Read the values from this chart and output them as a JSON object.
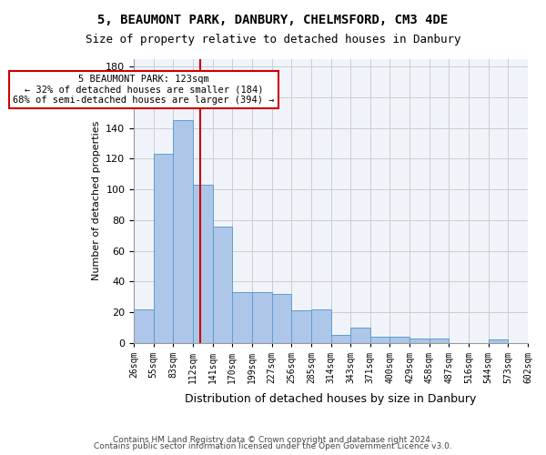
{
  "title1": "5, BEAUMONT PARK, DANBURY, CHELMSFORD, CM3 4DE",
  "title2": "Size of property relative to detached houses in Danbury",
  "xlabel": "Distribution of detached houses by size in Danbury",
  "ylabel": "Number of detached properties",
  "bin_labels": [
    "26sqm",
    "55sqm",
    "83sqm",
    "112sqm",
    "141sqm",
    "170sqm",
    "199sqm",
    "227sqm",
    "256sqm",
    "285sqm",
    "314sqm",
    "343sqm",
    "371sqm",
    "400sqm",
    "429sqm",
    "458sqm",
    "487sqm",
    "516sqm",
    "544sqm",
    "573sqm",
    "602sqm"
  ],
  "bar_heights": [
    22,
    123,
    145,
    103,
    76,
    33,
    33,
    32,
    21,
    22,
    5,
    10,
    4,
    4,
    3,
    3,
    0,
    0,
    2,
    0
  ],
  "bar_color": "#aec6e8",
  "bar_edge_color": "#5a9fd4",
  "property_value": 123,
  "property_line_x": 3,
  "annotation_text": "5 BEAUMONT PARK: 123sqm\n← 32% of detached houses are smaller (184)\n68% of semi-detached houses are larger (394) →",
  "annotation_box_color": "#ffffff",
  "annotation_border_color": "#cc0000",
  "vline_color": "#cc0000",
  "ylim": [
    0,
    185
  ],
  "yticks": [
    0,
    20,
    40,
    60,
    80,
    100,
    120,
    140,
    160,
    180
  ],
  "grid_color": "#cccccc",
  "bg_color": "#f0f4fa",
  "footer1": "Contains HM Land Registry data © Crown copyright and database right 2024.",
  "footer2": "Contains public sector information licensed under the Open Government Licence v3.0."
}
